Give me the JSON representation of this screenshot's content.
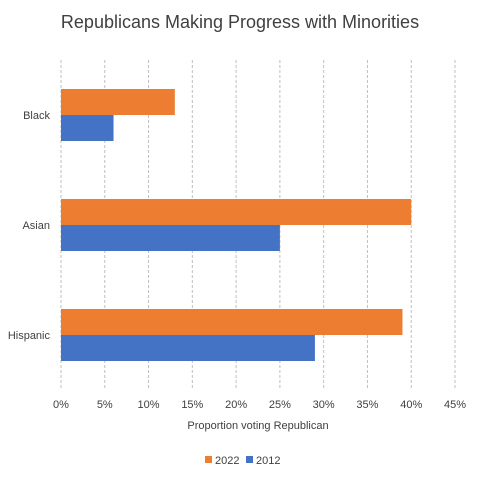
{
  "chart_data": {
    "type": "bar",
    "orientation": "horizontal",
    "title": "Republicans Making Progress with Minorities",
    "xlabel": "Proportion voting Republican",
    "ylabel": "",
    "categories": [
      "Black",
      "Asian",
      "Hispanic"
    ],
    "series": [
      {
        "name": "2022",
        "color": "#ED7D31",
        "values": [
          0.13,
          0.4,
          0.39
        ]
      },
      {
        "name": "2012",
        "color": "#4472C4",
        "values": [
          0.06,
          0.25,
          0.29
        ]
      }
    ],
    "xlim": [
      0,
      0.45
    ],
    "xticks": [
      0,
      0.05,
      0.1,
      0.15,
      0.2,
      0.25,
      0.3,
      0.35,
      0.4,
      0.45
    ],
    "xtick_labels": [
      "0%",
      "5%",
      "10%",
      "15%",
      "20%",
      "25%",
      "30%",
      "35%",
      "40%",
      "45%"
    ],
    "grid": "vertical",
    "gridline_color": "#BFBFBF",
    "legend_position": "bottom",
    "legend_order": [
      "2022",
      "2012"
    ]
  }
}
